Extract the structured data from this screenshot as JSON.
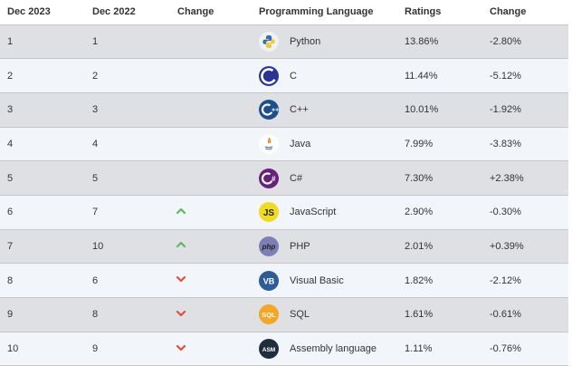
{
  "headers": {
    "dec2023": "Dec 2023",
    "dec2022": "Dec 2022",
    "change": "Change",
    "language": "Programming Language",
    "ratings": "Ratings",
    "change_pct": "Change"
  },
  "colors": {
    "up_arrow": "#5cb85c",
    "down_arrow": "#e74c3c",
    "row_odd": "#dee0e3",
    "row_even": "#f2f6fa"
  },
  "rows": [
    {
      "dec2023": "1",
      "dec2022": "1",
      "trend": "none",
      "icon": "python-icon",
      "language": "Python",
      "ratings": "13.86%",
      "change": "-2.80%"
    },
    {
      "dec2023": "2",
      "dec2022": "2",
      "trend": "none",
      "icon": "c-icon",
      "language": "C",
      "ratings": "11.44%",
      "change": "-5.12%"
    },
    {
      "dec2023": "3",
      "dec2022": "3",
      "trend": "none",
      "icon": "cpp-icon",
      "language": "C++",
      "ratings": "10.01%",
      "change": "-1.92%"
    },
    {
      "dec2023": "4",
      "dec2022": "4",
      "trend": "none",
      "icon": "java-icon",
      "language": "Java",
      "ratings": "7.99%",
      "change": "-3.83%"
    },
    {
      "dec2023": "5",
      "dec2022": "5",
      "trend": "none",
      "icon": "csharp-icon",
      "language": "C#",
      "ratings": "7.30%",
      "change": "+2.38%"
    },
    {
      "dec2023": "6",
      "dec2022": "7",
      "trend": "up",
      "icon": "javascript-icon",
      "language": "JavaScript",
      "ratings": "2.90%",
      "change": "-0.30%"
    },
    {
      "dec2023": "7",
      "dec2022": "10",
      "trend": "up",
      "icon": "php-icon",
      "language": "PHP",
      "ratings": "2.01%",
      "change": "+0.39%"
    },
    {
      "dec2023": "8",
      "dec2022": "6",
      "trend": "down",
      "icon": "visual-basic-icon",
      "language": "Visual Basic",
      "ratings": "1.82%",
      "change": "-2.12%"
    },
    {
      "dec2023": "9",
      "dec2022": "8",
      "trend": "down",
      "icon": "sql-icon",
      "language": "SQL",
      "ratings": "1.61%",
      "change": "-0.61%"
    },
    {
      "dec2023": "10",
      "dec2022": "9",
      "trend": "down",
      "icon": "assembly-icon",
      "language": "Assembly language",
      "ratings": "1.11%",
      "change": "-0.76%"
    }
  ]
}
